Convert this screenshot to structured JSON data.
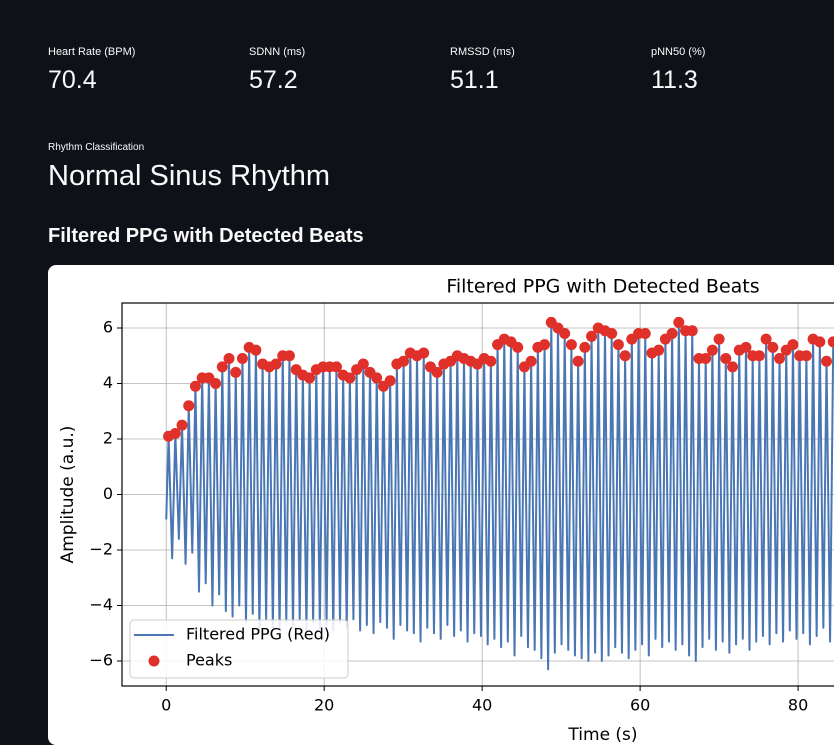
{
  "metrics": [
    {
      "label": "Heart Rate (BPM)",
      "value": 70.4
    },
    {
      "label": "SDNN (ms)",
      "value": 57.2
    },
    {
      "label": "RMSSD (ms)",
      "value": 51.1
    },
    {
      "label": "pNN50 (%)",
      "value": 11.3
    }
  ],
  "rhythm": {
    "label": "Rhythm Classification",
    "value": "Normal Sinus Rhythm"
  },
  "section_title": "Filtered PPG with Detected Beats",
  "chart_data": {
    "type": "line",
    "title": "Filtered PPG with Detected Beats",
    "xlabel": "Time (s)",
    "ylabel": "Amplitude (a.u.)",
    "xlim": [
      -5.6,
      116.2
    ],
    "ylim": [
      -6.9,
      6.9
    ],
    "xticks": [
      0,
      20,
      40,
      60,
      80
    ],
    "yticks": [
      {
        "value": -6,
        "label": "−6"
      },
      {
        "value": -4,
        "label": "−4"
      },
      {
        "value": -2,
        "label": "−2"
      },
      0,
      2,
      4,
      6
    ],
    "grid": true,
    "legend": "lower left",
    "series": [
      {
        "name": "Filtered PPG (Red)",
        "color": "#4a77b4",
        "x": [
          0,
          0.3,
          0.75,
          1.15,
          1.6,
          2,
          2.45,
          2.85,
          3.3,
          3.7,
          4.15,
          4.55,
          5,
          5.4,
          5.85,
          6.25,
          6.7,
          7.1,
          7.55,
          7.95,
          8.4,
          8.8,
          9.25,
          9.65,
          10.1,
          10.5,
          10.95,
          11.35,
          11.8,
          12.2,
          12.65,
          13.05,
          13.5,
          13.9,
          14.35,
          14.75,
          15.2,
          15.6,
          16.05,
          16.45,
          16.9,
          17.3,
          17.75,
          18.15,
          18.6,
          19,
          19.45,
          19.85,
          20.3,
          20.7,
          21.15,
          21.55,
          22,
          22.4,
          22.85,
          23.25,
          23.7,
          24.1,
          24.55,
          24.95,
          25.4,
          25.8,
          26.25,
          26.65,
          27.1,
          27.5,
          27.95,
          28.35,
          28.8,
          29.2,
          29.65,
          30.05,
          30.5,
          30.9,
          31.35,
          31.75,
          32.2,
          32.6,
          33.05,
          33.45,
          33.9,
          34.3,
          34.75,
          35.15,
          35.6,
          36,
          36.45,
          36.85,
          37.3,
          37.7,
          38.15,
          38.55,
          39,
          39.4,
          39.85,
          40.25,
          40.7,
          41.1,
          41.55,
          41.95,
          42.4,
          42.8,
          43.25,
          43.65,
          44.1,
          44.5,
          44.95,
          45.35,
          45.8,
          46.2,
          46.65,
          47.05,
          47.5,
          47.9,
          48.35,
          48.75,
          49.2,
          49.6,
          50.05,
          50.45,
          50.9,
          51.3,
          51.75,
          52.15,
          52.6,
          53,
          53.45,
          53.85,
          54.3,
          54.7,
          55.15,
          55.55,
          56,
          56.4,
          56.85,
          57.25,
          57.7,
          58.1,
          58.55,
          58.95,
          59.4,
          59.8,
          60.25,
          60.65,
          61.1,
          61.5,
          61.95,
          62.35,
          62.8,
          63.2,
          63.65,
          64.05,
          64.5,
          64.9,
          65.35,
          65.75,
          66.2,
          66.6,
          67.05,
          67.45,
          67.9,
          68.3,
          68.75,
          69.15,
          69.6,
          70,
          70.45,
          70.85,
          71.3,
          71.7,
          72.15,
          72.55,
          73,
          73.4,
          73.85,
          74.25,
          74.7,
          75.1,
          75.55,
          75.95,
          76.4,
          76.8,
          77.25,
          77.65,
          78.1,
          78.5,
          78.95,
          79.35,
          79.8,
          80.2,
          80.65,
          81.05,
          81.5,
          81.9,
          82.35,
          82.75,
          83.2,
          83.6,
          84.05,
          84.45
        ],
        "values": [
          -0.9,
          2.1,
          -2.3,
          2.2,
          -1.6,
          2.5,
          -2.5,
          3.2,
          -2.1,
          3.9,
          -3.5,
          4.2,
          -3.2,
          4.2,
          -4.0,
          4.0,
          -3.6,
          4.6,
          -4.2,
          4.9,
          -4.4,
          4.4,
          -4.0,
          4.9,
          -4.6,
          5.3,
          -4.3,
          5.2,
          -4.9,
          4.7,
          -4.5,
          4.6,
          -4.8,
          4.7,
          -4.9,
          5.0,
          -4.6,
          5.0,
          -4.8,
          4.5,
          -4.5,
          4.3,
          -4.9,
          4.2,
          -4.6,
          4.5,
          -4.8,
          4.6,
          -4.7,
          4.6,
          -4.9,
          4.6,
          -4.6,
          4.3,
          -4.8,
          4.2,
          -4.5,
          4.5,
          -4.9,
          4.7,
          -4.7,
          4.4,
          -5.0,
          4.2,
          -4.6,
          3.9,
          -4.8,
          4.1,
          -5.2,
          4.7,
          -4.7,
          4.8,
          -4.9,
          5.1,
          -5.0,
          5.0,
          -5.3,
          5.1,
          -4.8,
          4.6,
          -5.0,
          4.4,
          -5.2,
          4.7,
          -4.7,
          4.8,
          -5.1,
          5.0,
          -4.9,
          4.9,
          -5.3,
          4.8,
          -5.0,
          4.7,
          -5.1,
          4.9,
          -5.4,
          4.8,
          -5.2,
          5.4,
          -5.5,
          5.6,
          -5.3,
          5.5,
          -5.8,
          5.3,
          -5.1,
          4.6,
          -5.5,
          4.8,
          -5.6,
          5.3,
          -5.9,
          5.4,
          -6.3,
          6.2,
          -5.7,
          6.0,
          -5.4,
          5.8,
          -5.6,
          5.4,
          -5.8,
          4.8,
          -5.9,
          5.3,
          -6.0,
          5.7,
          -5.7,
          6.0,
          -6.0,
          5.9,
          -5.8,
          5.8,
          -5.5,
          5.4,
          -5.7,
          5.0,
          -5.9,
          5.6,
          -5.6,
          5.8,
          -5.4,
          5.8,
          -5.8,
          5.1,
          -5.2,
          5.2,
          -5.5,
          5.6,
          -5.3,
          5.8,
          -5.6,
          6.2,
          -5.4,
          5.9,
          -5.8,
          5.9,
          -6.0,
          4.9,
          -5.5,
          4.9,
          -5.2,
          5.2,
          -5.6,
          5.6,
          -5.3,
          4.9,
          -5.7,
          4.6,
          -5.4,
          5.2,
          -5.2,
          5.3,
          -5.6,
          5.0,
          -5.3,
          5.0,
          -5.1,
          5.6,
          -5.4,
          5.3,
          -5.0,
          4.9,
          -5.3,
          5.2,
          -4.9,
          5.4,
          -5.2,
          5.0,
          -5.0,
          5.0,
          -5.4,
          5.6,
          -5.1,
          5.5,
          -4.8,
          4.8,
          -5.3,
          5.5
        ]
      },
      {
        "name": "Peaks",
        "color": "#e0302a",
        "x": [
          0.3,
          1.15,
          2,
          2.85,
          3.7,
          4.55,
          5.4,
          6.25,
          7.1,
          7.95,
          8.8,
          9.65,
          10.5,
          11.35,
          12.2,
          13.05,
          13.9,
          14.75,
          15.6,
          16.45,
          17.3,
          18.15,
          19,
          19.85,
          20.7,
          21.55,
          22.4,
          23.25,
          24.1,
          24.95,
          25.8,
          26.65,
          27.5,
          28.35,
          29.2,
          30.05,
          30.9,
          31.75,
          32.6,
          33.45,
          34.3,
          35.15,
          36,
          36.85,
          37.7,
          38.55,
          39.4,
          40.25,
          41.1,
          41.95,
          42.8,
          43.65,
          44.5,
          45.35,
          46.2,
          47.05,
          47.9,
          48.75,
          49.6,
          50.45,
          51.3,
          52.15,
          53,
          53.85,
          54.7,
          55.55,
          56.4,
          57.25,
          58.1,
          58.95,
          59.8,
          60.65,
          61.5,
          62.35,
          63.2,
          64.05,
          64.9,
          65.75,
          66.6,
          67.45,
          68.3,
          69.15,
          70,
          70.85,
          71.7,
          72.55,
          73.4,
          74.25,
          75.1,
          75.95,
          76.8,
          77.65,
          78.5,
          79.35,
          80.2,
          81.05,
          81.9,
          82.75,
          83.6,
          84.45
        ],
        "values": [
          2.1,
          2.2,
          2.5,
          3.2,
          3.9,
          4.2,
          4.2,
          4.0,
          4.6,
          4.9,
          4.4,
          4.9,
          5.3,
          5.2,
          4.7,
          4.6,
          4.7,
          5.0,
          5.0,
          4.5,
          4.3,
          4.2,
          4.5,
          4.6,
          4.6,
          4.6,
          4.3,
          4.2,
          4.5,
          4.7,
          4.4,
          4.2,
          3.9,
          4.1,
          4.7,
          4.8,
          5.1,
          5.0,
          5.1,
          4.6,
          4.4,
          4.7,
          4.8,
          5.0,
          4.9,
          4.8,
          4.7,
          4.9,
          4.8,
          5.4,
          5.6,
          5.5,
          5.3,
          4.6,
          4.8,
          5.3,
          5.4,
          6.2,
          6.0,
          5.8,
          5.4,
          4.8,
          5.3,
          5.7,
          6.0,
          5.9,
          5.8,
          5.4,
          5.0,
          5.6,
          5.8,
          5.8,
          5.1,
          5.2,
          5.6,
          5.8,
          6.2,
          5.9,
          5.9,
          4.9,
          4.9,
          5.2,
          5.6,
          4.9,
          4.6,
          5.2,
          5.3,
          5.0,
          5.0,
          5.6,
          5.3,
          4.9,
          5.2,
          5.4,
          5.0,
          5.0,
          5.6,
          5.5,
          4.8,
          5.5
        ]
      }
    ]
  }
}
